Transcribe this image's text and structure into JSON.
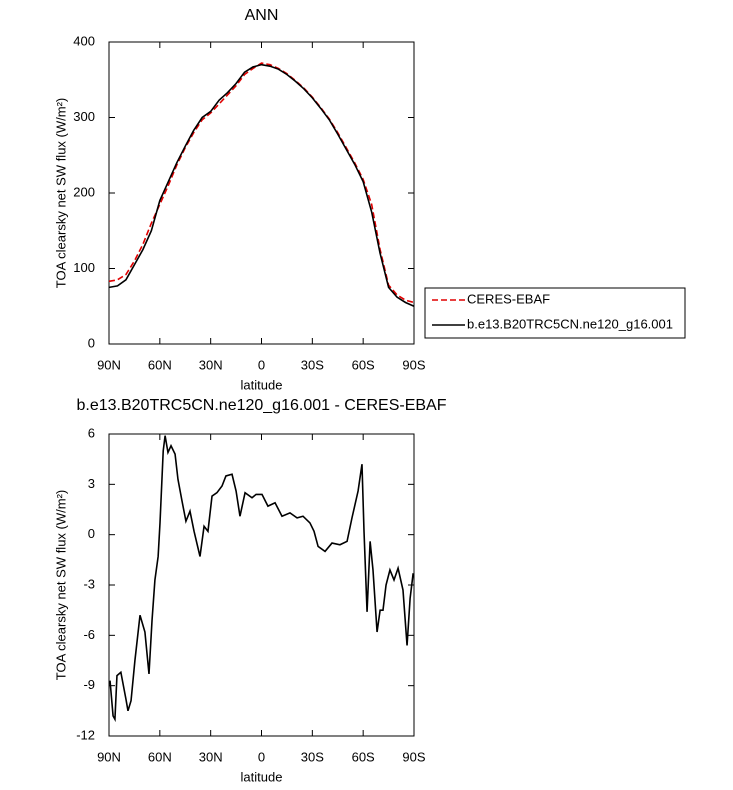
{
  "chart_data": [
    {
      "type": "line",
      "title": "ANN",
      "x_label": "latitude",
      "y_label": "TOA clearsky net SW flux (W/m²)",
      "x": [
        90,
        85,
        80,
        75,
        70,
        65,
        60,
        55,
        50,
        45,
        40,
        35,
        30,
        25,
        20,
        15,
        10,
        5,
        0,
        -5,
        -10,
        -15,
        -20,
        -25,
        -30,
        -35,
        -40,
        -45,
        -50,
        -55,
        -60,
        -65,
        -70,
        -75,
        -80,
        -85,
        -90
      ],
      "series": [
        {
          "name": "CERES-EBAF",
          "color": "#e00000",
          "dashed": true,
          "values": [
            83,
            85,
            92,
            110,
            132,
            160,
            185,
            210,
            237,
            260,
            280,
            297,
            306,
            318,
            330,
            342,
            357,
            365,
            372,
            370,
            365,
            358,
            349,
            339,
            327,
            313,
            298,
            280,
            260,
            240,
            218,
            185,
            125,
            78,
            65,
            58,
            55
          ]
        },
        {
          "name": "b.e13.B20TRC5CN.ne120_g16.001",
          "color": "#000000",
          "dashed": false,
          "values": [
            75,
            77,
            85,
            105,
            125,
            150,
            190,
            215,
            240,
            262,
            283,
            300,
            308,
            323,
            333,
            345,
            360,
            367,
            370,
            368,
            364,
            357,
            348,
            338,
            326,
            312,
            297,
            278,
            258,
            238,
            215,
            175,
            120,
            75,
            62,
            55,
            50
          ]
        }
      ],
      "xlim": [
        90,
        -90
      ],
      "xticks": [
        {
          "value": 90,
          "label": "90N"
        },
        {
          "value": 60,
          "label": "60N"
        },
        {
          "value": 30,
          "label": "30N"
        },
        0,
        {
          "value": -30,
          "label": "30S"
        },
        {
          "value": -60,
          "label": "60S"
        },
        {
          "value": -90,
          "label": "90S"
        }
      ],
      "ylim": [
        0,
        400
      ],
      "yticks": [
        0,
        100,
        200,
        300,
        400
      ],
      "legend": "right"
    },
    {
      "type": "line",
      "title": "b.e13.B20TRC5CN.ne120_g16.001 - CERES-EBAF",
      "x_label": "latitude",
      "y_label": "TOA clearsky net SW flux (W/m²)",
      "x": [
        89.4,
        87.6,
        86.5,
        85.3,
        83,
        80,
        78.8,
        77,
        74.7,
        71.7,
        68.8,
        66.4,
        64.6,
        62.9,
        61,
        59.9,
        58,
        56.9,
        55.2,
        53.4,
        51,
        49.3,
        46.9,
        44.6,
        42.2,
        39.8,
        36.3,
        33.9,
        31.6,
        29.2,
        26.3,
        23.3,
        21,
        17.4,
        15,
        12.7,
        9.7,
        5.6,
        3.2,
        -0.3,
        -3.8,
        -8,
        -12.1,
        -16.8,
        -21,
        -24.5,
        -28.6,
        -31,
        -33.4,
        -37.5,
        -41.6,
        -46.3,
        -50.5,
        -53.4,
        -57,
        -59.3,
        -60.5,
        -62.3,
        -64.1,
        -65.8,
        -68.2,
        -70,
        -71.7,
        -73.5,
        -75.8,
        -78.2,
        -80.6,
        -83.5,
        -85.9,
        -87.7,
        -89.5
      ],
      "values": [
        -8.7,
        -10.8,
        -11,
        -8.4,
        -8.2,
        -9.8,
        -10.5,
        -9.9,
        -7.5,
        -4.8,
        -5.8,
        -8.3,
        -5.1,
        -2.7,
        -1.3,
        0.7,
        5.0,
        5.9,
        4.9,
        5.3,
        4.8,
        3.3,
        2.0,
        0.8,
        1.4,
        0.2,
        -1.3,
        0.5,
        0.2,
        2.3,
        2.5,
        2.9,
        3.5,
        3.6,
        2.6,
        1.1,
        2.5,
        2.2,
        2.4,
        2.4,
        1.7,
        1.9,
        1.1,
        1.3,
        1.0,
        1.1,
        0.7,
        0.2,
        -0.7,
        -1.0,
        -0.5,
        -0.6,
        -0.4,
        1.0,
        2.6,
        4.2,
        0.2,
        -4.6,
        -0.4,
        -2.1,
        -5.8,
        -4.5,
        -4.5,
        -3.0,
        -2.1,
        -2.7,
        -2.0,
        -3.3,
        -6.6,
        -3.8,
        -2.3
      ],
      "color": "#000000",
      "xlim": [
        90,
        -90
      ],
      "xticks": [
        {
          "value": 90,
          "label": "90N"
        },
        {
          "value": 60,
          "label": "60N"
        },
        {
          "value": 30,
          "label": "30N"
        },
        0,
        {
          "value": -30,
          "label": "30S"
        },
        {
          "value": -60,
          "label": "60S"
        },
        {
          "value": -90,
          "label": "90S"
        }
      ],
      "ylim": [
        -12,
        6
      ],
      "yticks": [
        -12,
        -9,
        -6,
        -3,
        0,
        3,
        6
      ]
    }
  ]
}
